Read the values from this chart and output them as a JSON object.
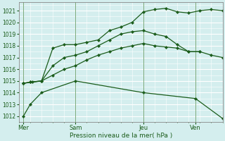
{
  "xlabel": "Pression niveau de la mer( hPa )",
  "bg_color": "#d4eeee",
  "grid_major_color": "#ffffff",
  "grid_minor_color": "#eef6f6",
  "line_color": "#1a5c1a",
  "ylim": [
    1011.5,
    1021.7
  ],
  "xlim": [
    0,
    9.0
  ],
  "yticks": [
    1012,
    1013,
    1014,
    1015,
    1016,
    1017,
    1018,
    1019,
    1020,
    1021
  ],
  "day_labels": [
    "Mer",
    "Sam",
    "Jeu",
    "Ven"
  ],
  "day_positions": [
    0.2,
    2.5,
    5.5,
    7.8
  ],
  "vline_positions": [
    0.2,
    2.5,
    5.5,
    7.8
  ],
  "series": [
    {
      "x": [
        0.2,
        0.6,
        1.0,
        1.5,
        2.0,
        2.5,
        3.0,
        3.5,
        4.0,
        4.5,
        5.0,
        5.5,
        6.0,
        6.5,
        7.0,
        7.5,
        8.0,
        8.5,
        9.0
      ],
      "y": [
        1014.8,
        1014.9,
        1015.0,
        1017.8,
        1018.1,
        1018.1,
        1018.3,
        1018.5,
        1019.3,
        1019.6,
        1020.0,
        1020.9,
        1021.1,
        1021.2,
        1020.9,
        1020.8,
        1021.0,
        1021.1,
        1021.0
      ]
    },
    {
      "x": [
        0.2,
        0.5,
        1.0,
        1.5,
        2.0,
        2.5,
        3.0,
        3.5,
        4.0,
        4.5,
        5.0,
        5.5,
        6.0,
        6.5,
        7.0,
        7.5,
        8.0,
        8.5,
        9.0
      ],
      "y": [
        1014.8,
        1014.9,
        1015.0,
        1016.3,
        1017.0,
        1017.2,
        1017.5,
        1018.0,
        1018.5,
        1019.0,
        1019.2,
        1019.3,
        1019.0,
        1018.8,
        1018.1,
        1017.5,
        1017.5,
        1017.2,
        1017.0
      ]
    },
    {
      "x": [
        0.2,
        0.5,
        1.0,
        1.5,
        2.0,
        2.5,
        3.0,
        3.5,
        4.0,
        4.5,
        5.0,
        5.5,
        6.0,
        6.5,
        7.0,
        7.5,
        8.0
      ],
      "y": [
        1014.8,
        1014.9,
        1015.0,
        1015.5,
        1016.0,
        1016.3,
        1016.8,
        1017.2,
        1017.5,
        1017.8,
        1018.0,
        1018.2,
        1018.0,
        1017.9,
        1017.8,
        1017.5,
        1017.5
      ]
    },
    {
      "x": [
        0.2,
        0.5,
        1.0,
        2.5,
        5.5,
        7.8,
        9.0
      ],
      "y": [
        1012.0,
        1013.0,
        1014.0,
        1015.0,
        1014.0,
        1013.5,
        1011.8
      ]
    }
  ]
}
